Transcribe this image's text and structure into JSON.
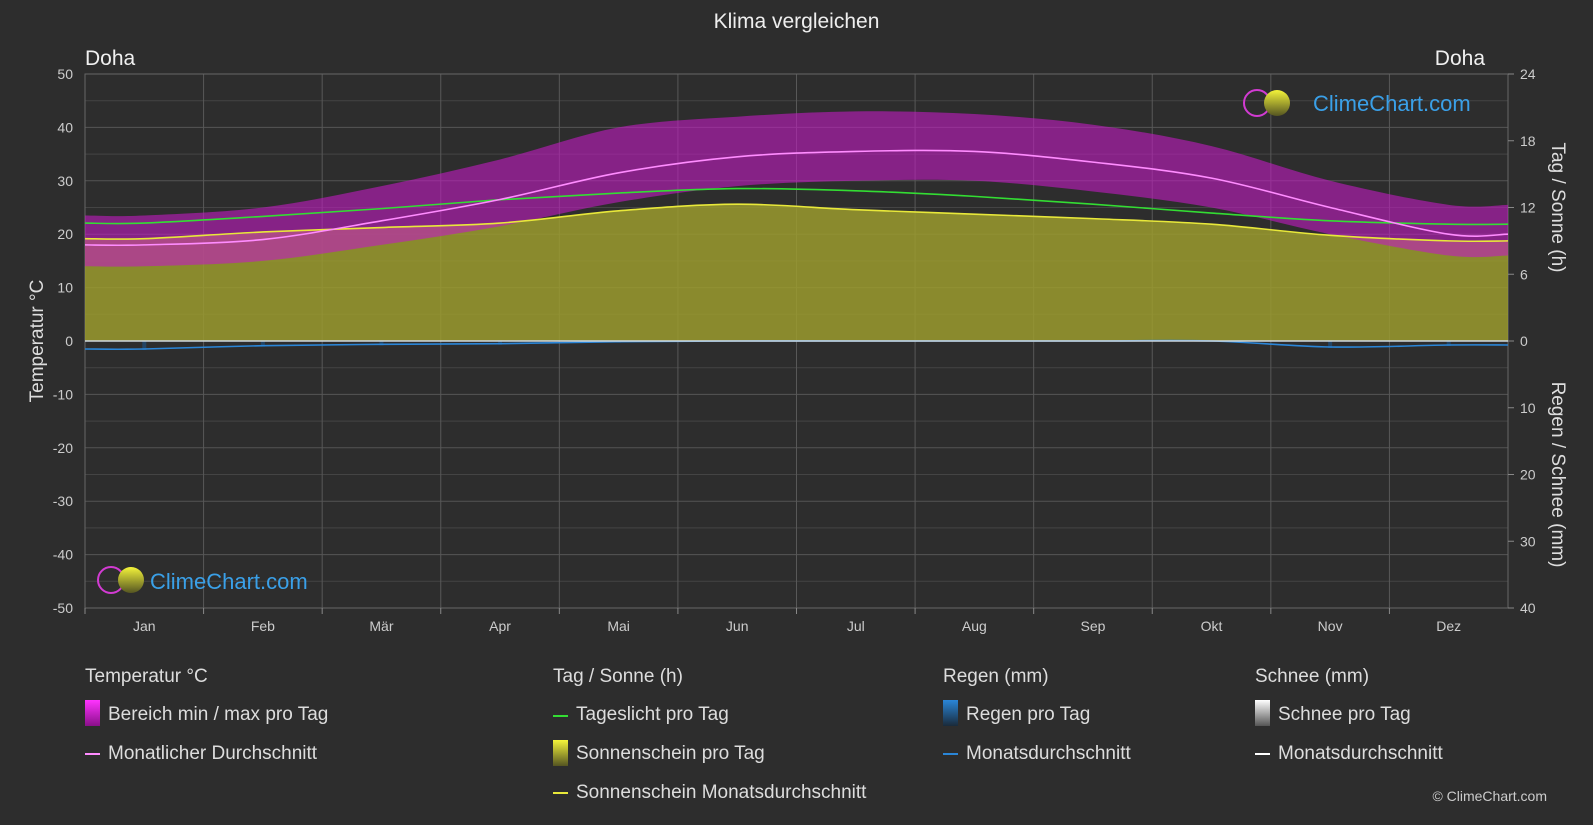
{
  "title": "Klima vergleichen",
  "location_left": "Doha",
  "location_right": "Doha",
  "watermark": "ClimeChart.com",
  "copyright": "© ClimeChart.com",
  "chart_data": {
    "type": "area",
    "months": [
      "Jan",
      "Feb",
      "Mär",
      "Apr",
      "Mai",
      "Jun",
      "Jul",
      "Aug",
      "Sep",
      "Okt",
      "Nov",
      "Dez"
    ],
    "axes": {
      "left": {
        "label": "Temperatur °C",
        "range": [
          -50,
          50
        ],
        "ticks": [
          50,
          40,
          30,
          20,
          10,
          0,
          -10,
          -20,
          -30,
          -40,
          -50
        ]
      },
      "right_top": {
        "label": "Tag / Sonne (h)",
        "range": [
          0,
          24
        ],
        "ticks": [
          24,
          18,
          12,
          6,
          0
        ]
      },
      "right_bottom": {
        "label": "Regen / Schnee (mm)",
        "range": [
          0,
          40
        ],
        "ticks": [
          0,
          10,
          20,
          30,
          40
        ]
      }
    },
    "series": {
      "temp_max": [
        23.5,
        25,
        29,
        34,
        40,
        42,
        43,
        42.5,
        40.5,
        36.5,
        30,
        25.5
      ],
      "temp_min": [
        14,
        15,
        18,
        21.5,
        26,
        29,
        30,
        30,
        28,
        25,
        20,
        16
      ],
      "temp_avg": [
        18,
        19,
        22.5,
        26.5,
        31.5,
        34.5,
        35.5,
        35.5,
        33.5,
        30.5,
        25,
        20
      ],
      "daylight": [
        10.6,
        11.2,
        11.9,
        12.7,
        13.3,
        13.7,
        13.5,
        13.0,
        12.3,
        11.5,
        10.8,
        10.5
      ],
      "sunshine": [
        9.2,
        9.8,
        10.2,
        10.6,
        11.7,
        12.3,
        11.8,
        11.4,
        11.0,
        10.5,
        9.5,
        9.0
      ],
      "rain_monthly_avg_mm": [
        1.2,
        0.7,
        0.5,
        0.4,
        0.1,
        0.0,
        0.0,
        0.0,
        0.0,
        0.0,
        0.9,
        0.6
      ]
    }
  },
  "legend": {
    "temperature": {
      "heading": "Temperatur °C",
      "items": [
        "Bereich min / max pro Tag",
        "Monatlicher Durchschnitt"
      ]
    },
    "sun": {
      "heading": "Tag / Sonne (h)",
      "items": [
        "Tageslicht pro Tag",
        "Sonnenschein pro Tag",
        "Sonnenschein Monatsdurchschnitt"
      ]
    },
    "rain": {
      "heading": "Regen (mm)",
      "items": [
        "Regen pro Tag",
        "Monatsdurchschnitt"
      ]
    },
    "snow": {
      "heading": "Schnee (mm)",
      "items": [
        "Schnee pro Tag",
        "Monatsdurchschnitt"
      ]
    }
  },
  "colors": {
    "temp_band": "#c21bc2",
    "temp_avg": "#ff8cff",
    "daylight": "#33dd33",
    "sunshine_fill": "#9b9b2e",
    "sunshine_avg": "#e8e83a",
    "rain": "#2a86d8",
    "snow": "#ffffff"
  }
}
